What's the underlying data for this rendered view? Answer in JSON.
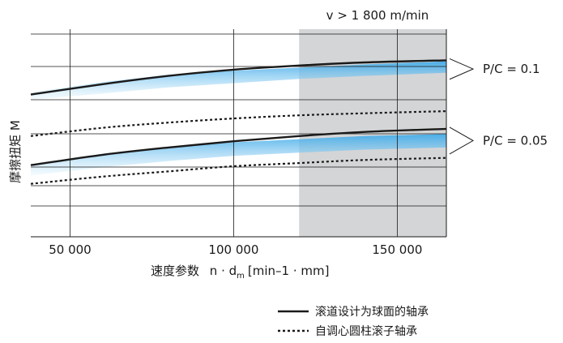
{
  "chart_data": {
    "type": "line",
    "region_label": "v > 1 800 m/min",
    "region_x": [
      120000,
      165000
    ],
    "xlim": [
      38000,
      165000
    ],
    "ylim": [
      0,
      10
    ],
    "x_ticks": [
      50000,
      100000,
      150000
    ],
    "x_tick_labels": [
      "50 000",
      "100 000",
      "150 000"
    ],
    "xlabel_main": "速度参数",
    "xlabel_formula": "n · d",
    "xlabel_sub": "m",
    "xlabel_units": "[min–1 · mm]",
    "ylabel": "摩擦扭矩 M",
    "groups": [
      {
        "label": "P/C = 0.1",
        "band_top": [
          [
            38000,
            6.95
          ],
          [
            60000,
            7.45
          ],
          [
            80000,
            7.8
          ],
          [
            100000,
            8.0
          ],
          [
            120000,
            8.15
          ],
          [
            140000,
            8.3
          ],
          [
            165000,
            8.45
          ]
        ],
        "band_bottom": [
          [
            38000,
            6.6
          ],
          [
            60000,
            6.9
          ],
          [
            80000,
            7.2
          ],
          [
            100000,
            7.4
          ],
          [
            120000,
            7.6
          ],
          [
            140000,
            7.75
          ],
          [
            165000,
            7.9
          ]
        ],
        "solid": [
          [
            38000,
            6.85
          ],
          [
            60000,
            7.35
          ],
          [
            80000,
            7.75
          ],
          [
            100000,
            8.05
          ],
          [
            120000,
            8.25
          ],
          [
            140000,
            8.4
          ],
          [
            165000,
            8.5
          ]
        ],
        "dotted": [
          [
            38000,
            4.85
          ],
          [
            60000,
            5.25
          ],
          [
            80000,
            5.5
          ],
          [
            100000,
            5.7
          ],
          [
            120000,
            5.85
          ],
          [
            140000,
            5.95
          ],
          [
            165000,
            6.05
          ]
        ]
      },
      {
        "label": "P/C = 0.05",
        "band_top": [
          [
            38000,
            3.5
          ],
          [
            60000,
            4.0
          ],
          [
            80000,
            4.3
          ],
          [
            100000,
            4.55
          ],
          [
            120000,
            4.7
          ],
          [
            140000,
            4.85
          ],
          [
            165000,
            4.95
          ]
        ],
        "band_bottom": [
          [
            38000,
            2.95
          ],
          [
            60000,
            3.35
          ],
          [
            80000,
            3.65
          ],
          [
            100000,
            3.9
          ],
          [
            120000,
            4.05
          ],
          [
            140000,
            4.2
          ],
          [
            165000,
            4.3
          ]
        ],
        "solid": [
          [
            38000,
            3.45
          ],
          [
            60000,
            3.95
          ],
          [
            80000,
            4.3
          ],
          [
            100000,
            4.6
          ],
          [
            120000,
            4.85
          ],
          [
            140000,
            5.05
          ],
          [
            165000,
            5.2
          ]
        ],
        "dotted": [
          [
            38000,
            2.55
          ],
          [
            60000,
            2.9
          ],
          [
            80000,
            3.15
          ],
          [
            100000,
            3.4
          ],
          [
            120000,
            3.55
          ],
          [
            140000,
            3.7
          ],
          [
            165000,
            3.8
          ]
        ]
      }
    ],
    "legend": [
      {
        "style": "solid",
        "label": "滚道设计为球面的轴承"
      },
      {
        "style": "dotted",
        "label": "自调心圆柱滚子轴承"
      }
    ],
    "colors": {
      "region": "#d4d5d6",
      "band": "#7ccbf0",
      "line": "#1a1a1a",
      "grid": "#1a1a1a"
    }
  }
}
